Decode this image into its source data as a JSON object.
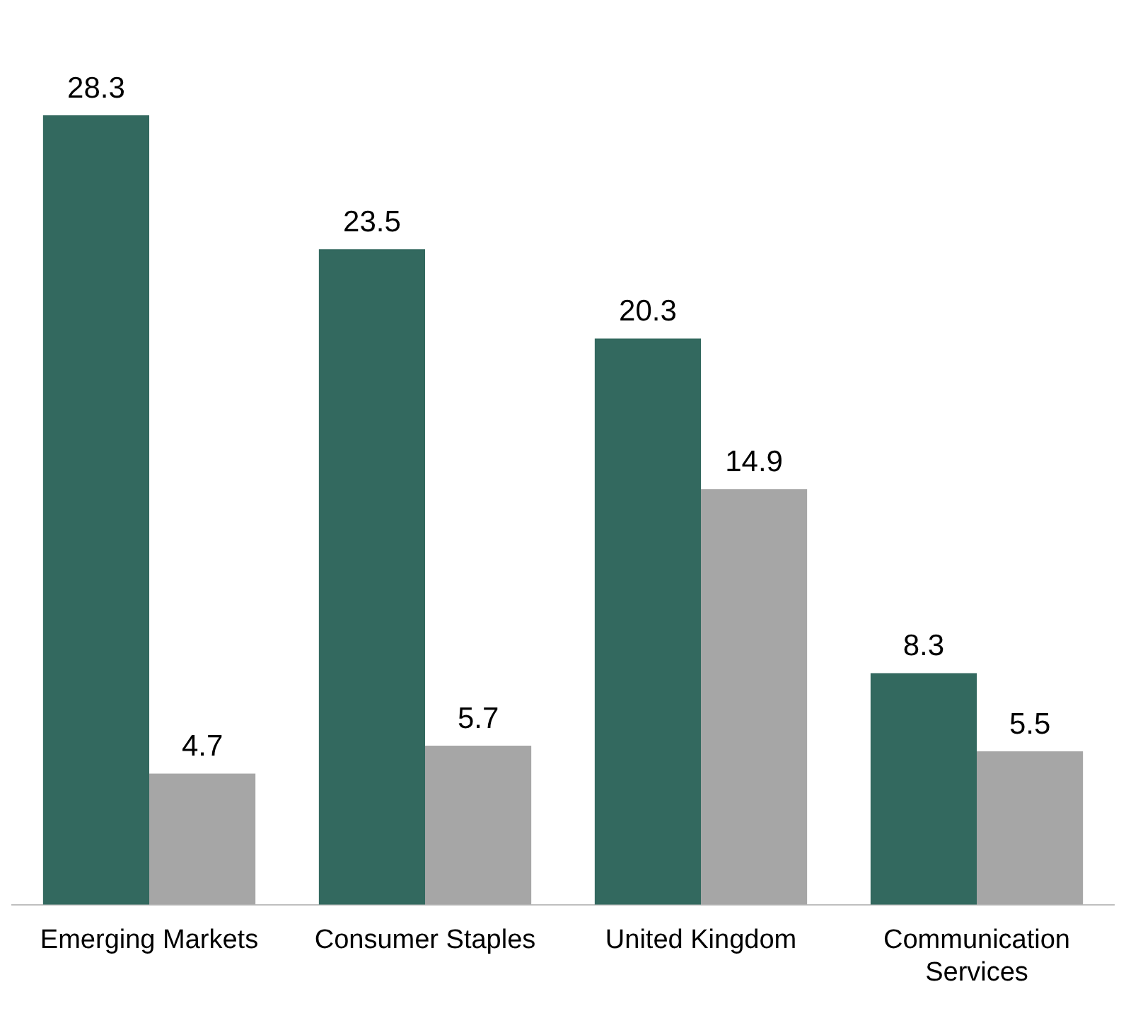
{
  "chart_data": {
    "type": "bar",
    "categories": [
      "Emerging Markets",
      "Consumer Staples",
      "United Kingdom",
      "Communication Services"
    ],
    "series": [
      {
        "color": "#33695f",
        "values": [
          28.3,
          23.5,
          20.3,
          8.3
        ]
      },
      {
        "color": "#a6a6a6",
        "values": [
          4.7,
          5.7,
          14.9,
          5.5
        ]
      }
    ],
    "data_labels": true,
    "grid": false,
    "legend": false,
    "tick_labels": "x"
  }
}
